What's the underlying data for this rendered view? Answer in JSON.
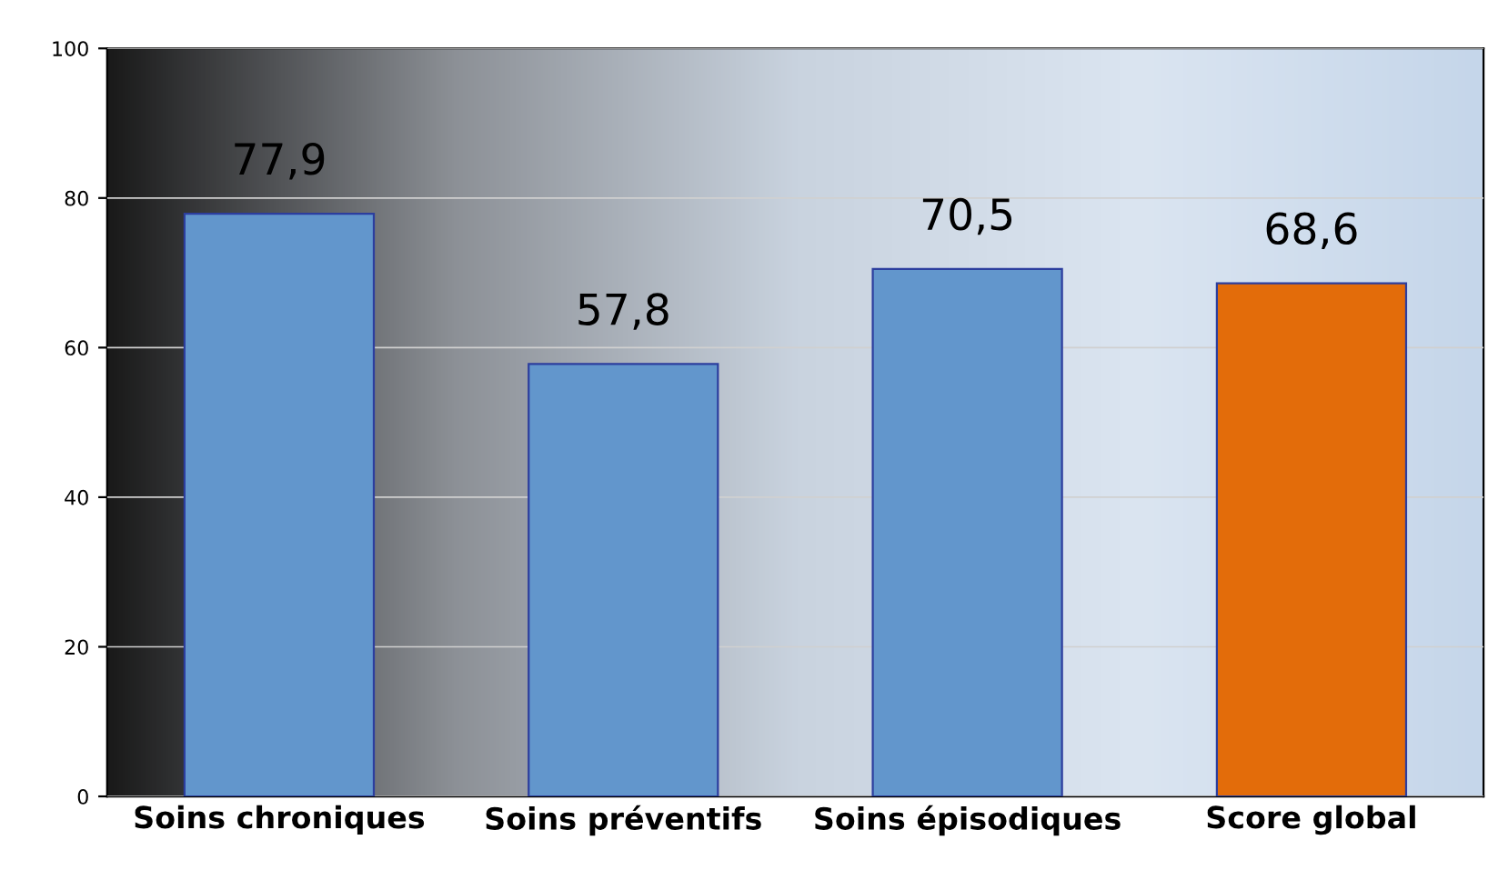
{
  "chart_data": {
    "type": "bar",
    "categories": [
      "Soins chroniques",
      "Soins préventifs",
      "Soins épisodiques",
      "Score global"
    ],
    "values": [
      77.9,
      57.8,
      70.5,
      68.6
    ],
    "colors": [
      "#6296cc",
      "#6296cc",
      "#6296cc",
      "#e36c0a"
    ],
    "value_labels": [
      "77,9",
      "57,8",
      "70,5",
      "68,6"
    ],
    "ylim": [
      0,
      100
    ],
    "yticks": [
      0,
      20,
      40,
      60,
      80,
      100
    ],
    "grid": "y"
  }
}
